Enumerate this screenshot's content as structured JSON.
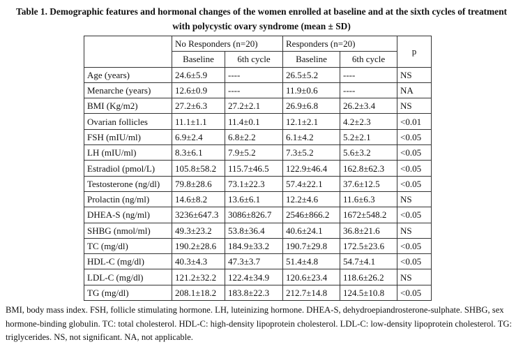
{
  "caption": "Table 1. Demographic features and hormonal changes of the women enrolled at baseline and at the sixth cycles of treatment with polycystic ovary syndrome (mean ± SD)",
  "header": {
    "group_no": "No Responders (n=20)",
    "group_yes": "Responders (n=20)",
    "p_label": "p",
    "baseline": "Baseline",
    "sixth": "6th cycle"
  },
  "rows": [
    {
      "label": "Age (years)",
      "nr_base": "24.6±5.9",
      "nr_6": "----",
      "r_base": "26.5±5.2",
      "r_6": "----",
      "p": "NS"
    },
    {
      "label": "Menarche (years)",
      "nr_base": "12.6±0.9",
      "nr_6": "----",
      "r_base": "11.9±0.6",
      "r_6": "----",
      "p": "NA"
    },
    {
      "label": "BMI (Kg/m2)",
      "nr_base": "27.2±6.3",
      "nr_6": "27.2±2.1",
      "r_base": "26.9±6.8",
      "r_6": "26.2±3.4",
      "p": "NS"
    },
    {
      "label": "Ovarian follicles",
      "nr_base": "11.1±1.1",
      "nr_6": "11.4±0.1",
      "r_base": "12.1±2.1",
      "r_6": "4.2±2.3",
      "p": "<0.01"
    },
    {
      "label": "FSH (mIU/ml)",
      "nr_base": "6.9±2.4",
      "nr_6": "6.8±2.2",
      "r_base": "6.1±4.2",
      "r_6": "5.2±2.1",
      "p": "<0.05"
    },
    {
      "label": "LH (mIU/ml)",
      "nr_base": "8.3±6.1",
      "nr_6": "7.9±5.2",
      "r_base": "7.3±5.2",
      "r_6": "5.6±3.2",
      "p": "<0.05"
    },
    {
      "label": "Estradiol (pmol/L)",
      "nr_base": "105.8±58.2",
      "nr_6": "115.7±46.5",
      "r_base": "122.9±46.4",
      "r_6": "162.8±62.3",
      "p": "<0.05"
    },
    {
      "label": "Testosterone (ng/dl)",
      "nr_base": "79.8±28.6",
      "nr_6": "73.1±22.3",
      "r_base": "57.4±22.1",
      "r_6": "37.6±12.5",
      "p": "<0.05"
    },
    {
      "label": "Prolactin (ng/ml)",
      "nr_base": "14.6±8.2",
      "nr_6": "13.6±6.1",
      "r_base": "12.2±4.6",
      "r_6": "11.6±6.3",
      "p": "NS"
    },
    {
      "label": "DHEA-S (ng/ml)",
      "nr_base": "3236±647.3",
      "nr_6": "3086±826.7",
      "r_base": "2546±866.2",
      "r_6": "1672±548.2",
      "p": "<0.05"
    },
    {
      "label": "SHBG (nmol/ml)",
      "nr_base": "49.3±23.2",
      "nr_6": "53.8±36.4",
      "r_base": "40.6±24.1",
      "r_6": "36.8±21.6",
      "p": "NS"
    },
    {
      "label": "TC (mg/dl)",
      "nr_base": "190.2±28.6",
      "nr_6": "184.9±33.2",
      "r_base": "190.7±29.8",
      "r_6": "172.5±23.6",
      "p": "<0.05"
    },
    {
      "label": "HDL-C (mg/dl)",
      "nr_base": "40.3±4.3",
      "nr_6": "47.3±3.7",
      "r_base": "51.4±4.8",
      "r_6": "54.7±4.1",
      "p": "<0.05"
    },
    {
      "label": "LDL-C (mg/dl)",
      "nr_base": "121.2±32.2",
      "nr_6": "122.4±34.9",
      "r_base": "120.6±23.4",
      "r_6": "118.6±26.2",
      "p": "NS"
    },
    {
      "label": "TG (mg/dl)",
      "nr_base": "208.1±18.2",
      "nr_6": "183.8±22.3",
      "r_base": "212.7±14.8",
      "r_6": "124.5±10.8",
      "p": "<0.05"
    }
  ],
  "footnote": "BMI, body mass index.  FSH, follicle stimulating hormone.  LH, luteinizing hormone.  DHEA-S, dehydroepiandrosterone-sulphate. SHBG, sex hormone-binding globulin.  TC: total cholesterol.  HDL-C: high-density lipoprotein cholesterol.  LDL-C: low-density lipoprotein cholesterol.  TG: triglycerides.  NS, not significant.  NA, not applicable."
}
